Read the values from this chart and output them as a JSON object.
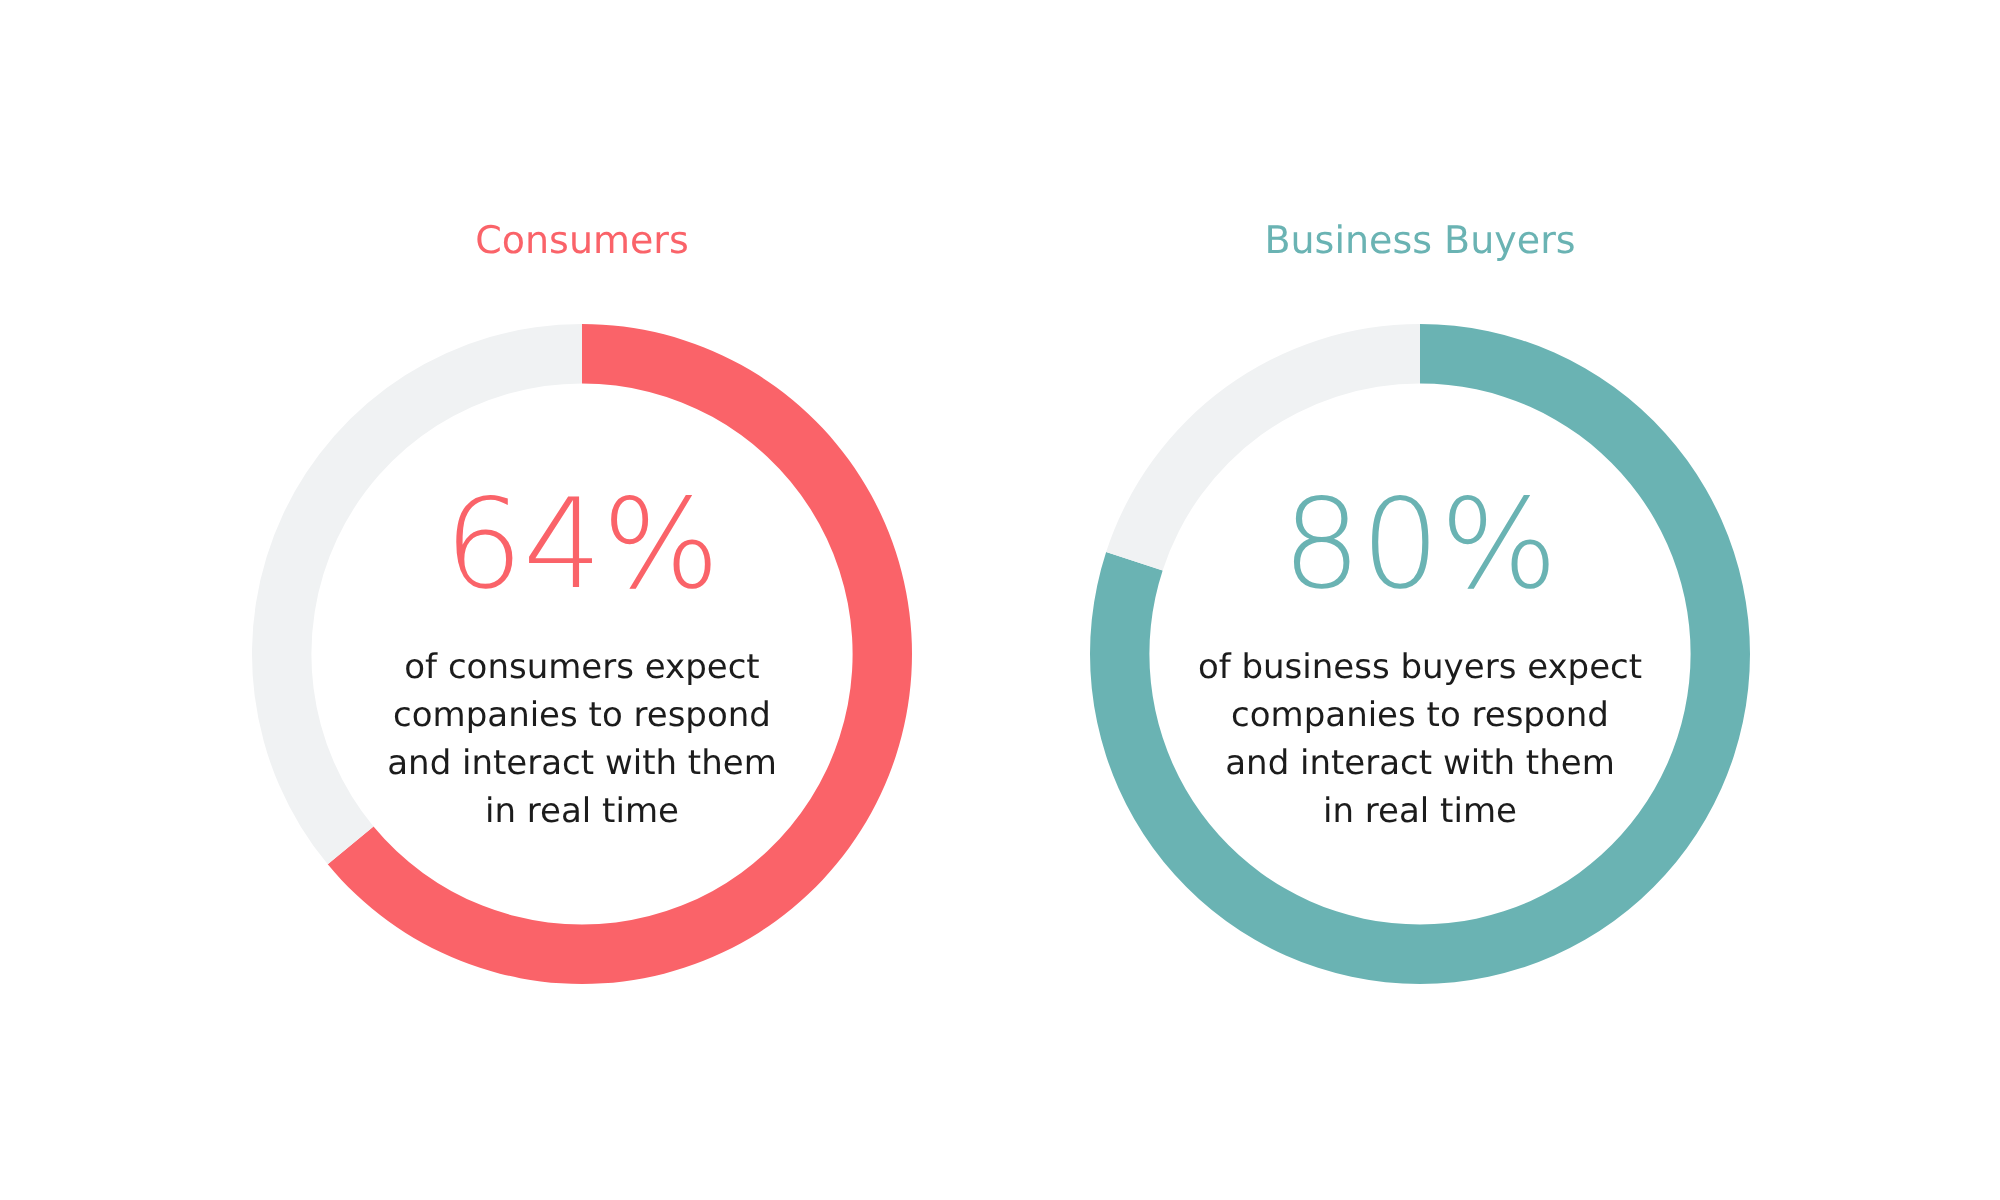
{
  "chart_data": [
    {
      "type": "donut",
      "title": "Consumers",
      "categories": [
        null,
        null
      ],
      "values": [
        64,
        36
      ],
      "colors": [
        "#fa6369",
        "#f0f2f3"
      ],
      "value_labels": [
        "64%",
        null
      ],
      "annotations": [
        "of consumers expect\ncompanies to respond\nand interact with them\nin real time"
      ]
    },
    {
      "type": "donut",
      "title": "Business Buyers",
      "categories": [
        null,
        null
      ],
      "values": [
        80,
        20
      ],
      "colors": [
        "#6ab3b3",
        "#f0f2f3"
      ],
      "value_labels": [
        "80%",
        null
      ],
      "annotations": [
        "of business buyers expect\ncompanies to respond\nand interact with them\nin real time"
      ]
    }
  ]
}
